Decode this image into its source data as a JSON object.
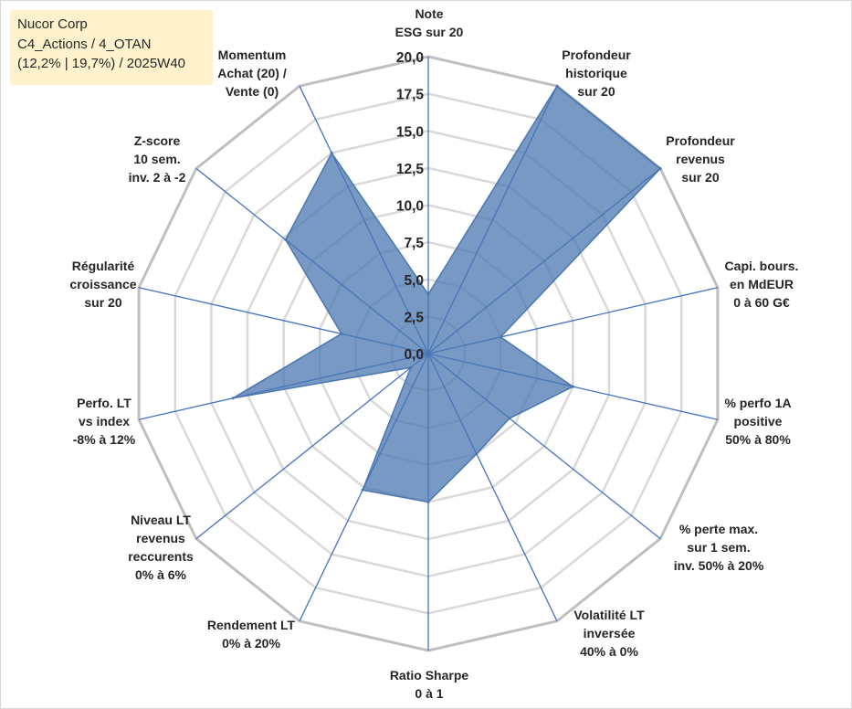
{
  "info_box": {
    "line1": "Nucor Corp",
    "line2": "C4_Actions / 4_OTAN",
    "line3": "(12,2% | 19,7%) / 2025W40"
  },
  "colors": {
    "fill": "#4a77b0",
    "spoke": "#4472c4",
    "grid": "#d9d9d9",
    "outer_ring": "#bfbfbf",
    "info_bg": "#fff2cc"
  },
  "chart_data": {
    "type": "radar",
    "title": "",
    "rmin": 0,
    "rmax": 20,
    "ticks": [
      "0,0",
      "2,5",
      "5,0",
      "7,5",
      "10,0",
      "12,5",
      "15,0",
      "17,5",
      "20,0"
    ],
    "tick_values": [
      0,
      2.5,
      5,
      7.5,
      10,
      12.5,
      15,
      17.5,
      20
    ],
    "grid_steps": 8,
    "categories": [
      [
        "Note",
        "ESG sur 20"
      ],
      [
        "Profondeur",
        "historique",
        "sur 20"
      ],
      [
        "Profondeur",
        "revenus",
        "sur 20"
      ],
      [
        "Capi. bours.",
        "en MdEUR",
        "0 à 60 G€"
      ],
      [
        "% perfo 1A",
        "positive",
        "50% à 80%"
      ],
      [
        "% perte max.",
        "sur 1 sem.",
        "inv. 50% à 20%"
      ],
      [
        "Volatilité LT",
        "inversée",
        "40% à 0%"
      ],
      [
        "Ratio Sharpe",
        "0 à 1"
      ],
      [
        "Rendement LT",
        "0% à 20%"
      ],
      [
        "Niveau LT",
        "revenus",
        "reccurents",
        "0% à 6%"
      ],
      [
        "Perfo. LT",
        "vs index",
        "-8% à 12%"
      ],
      [
        "Régularité",
        "croissance",
        "sur 20"
      ],
      [
        "Z-score",
        "10 sem.",
        "inv. 2 à -2"
      ],
      [
        "Momentum",
        "Achat (20) /",
        "Vente (0)"
      ]
    ],
    "series": [
      {
        "name": "Nucor Corp",
        "values": [
          4,
          20,
          20,
          5,
          10,
          7,
          7.5,
          10,
          10.2,
          1.5,
          13.5,
          6,
          12.3,
          15
        ]
      }
    ]
  }
}
